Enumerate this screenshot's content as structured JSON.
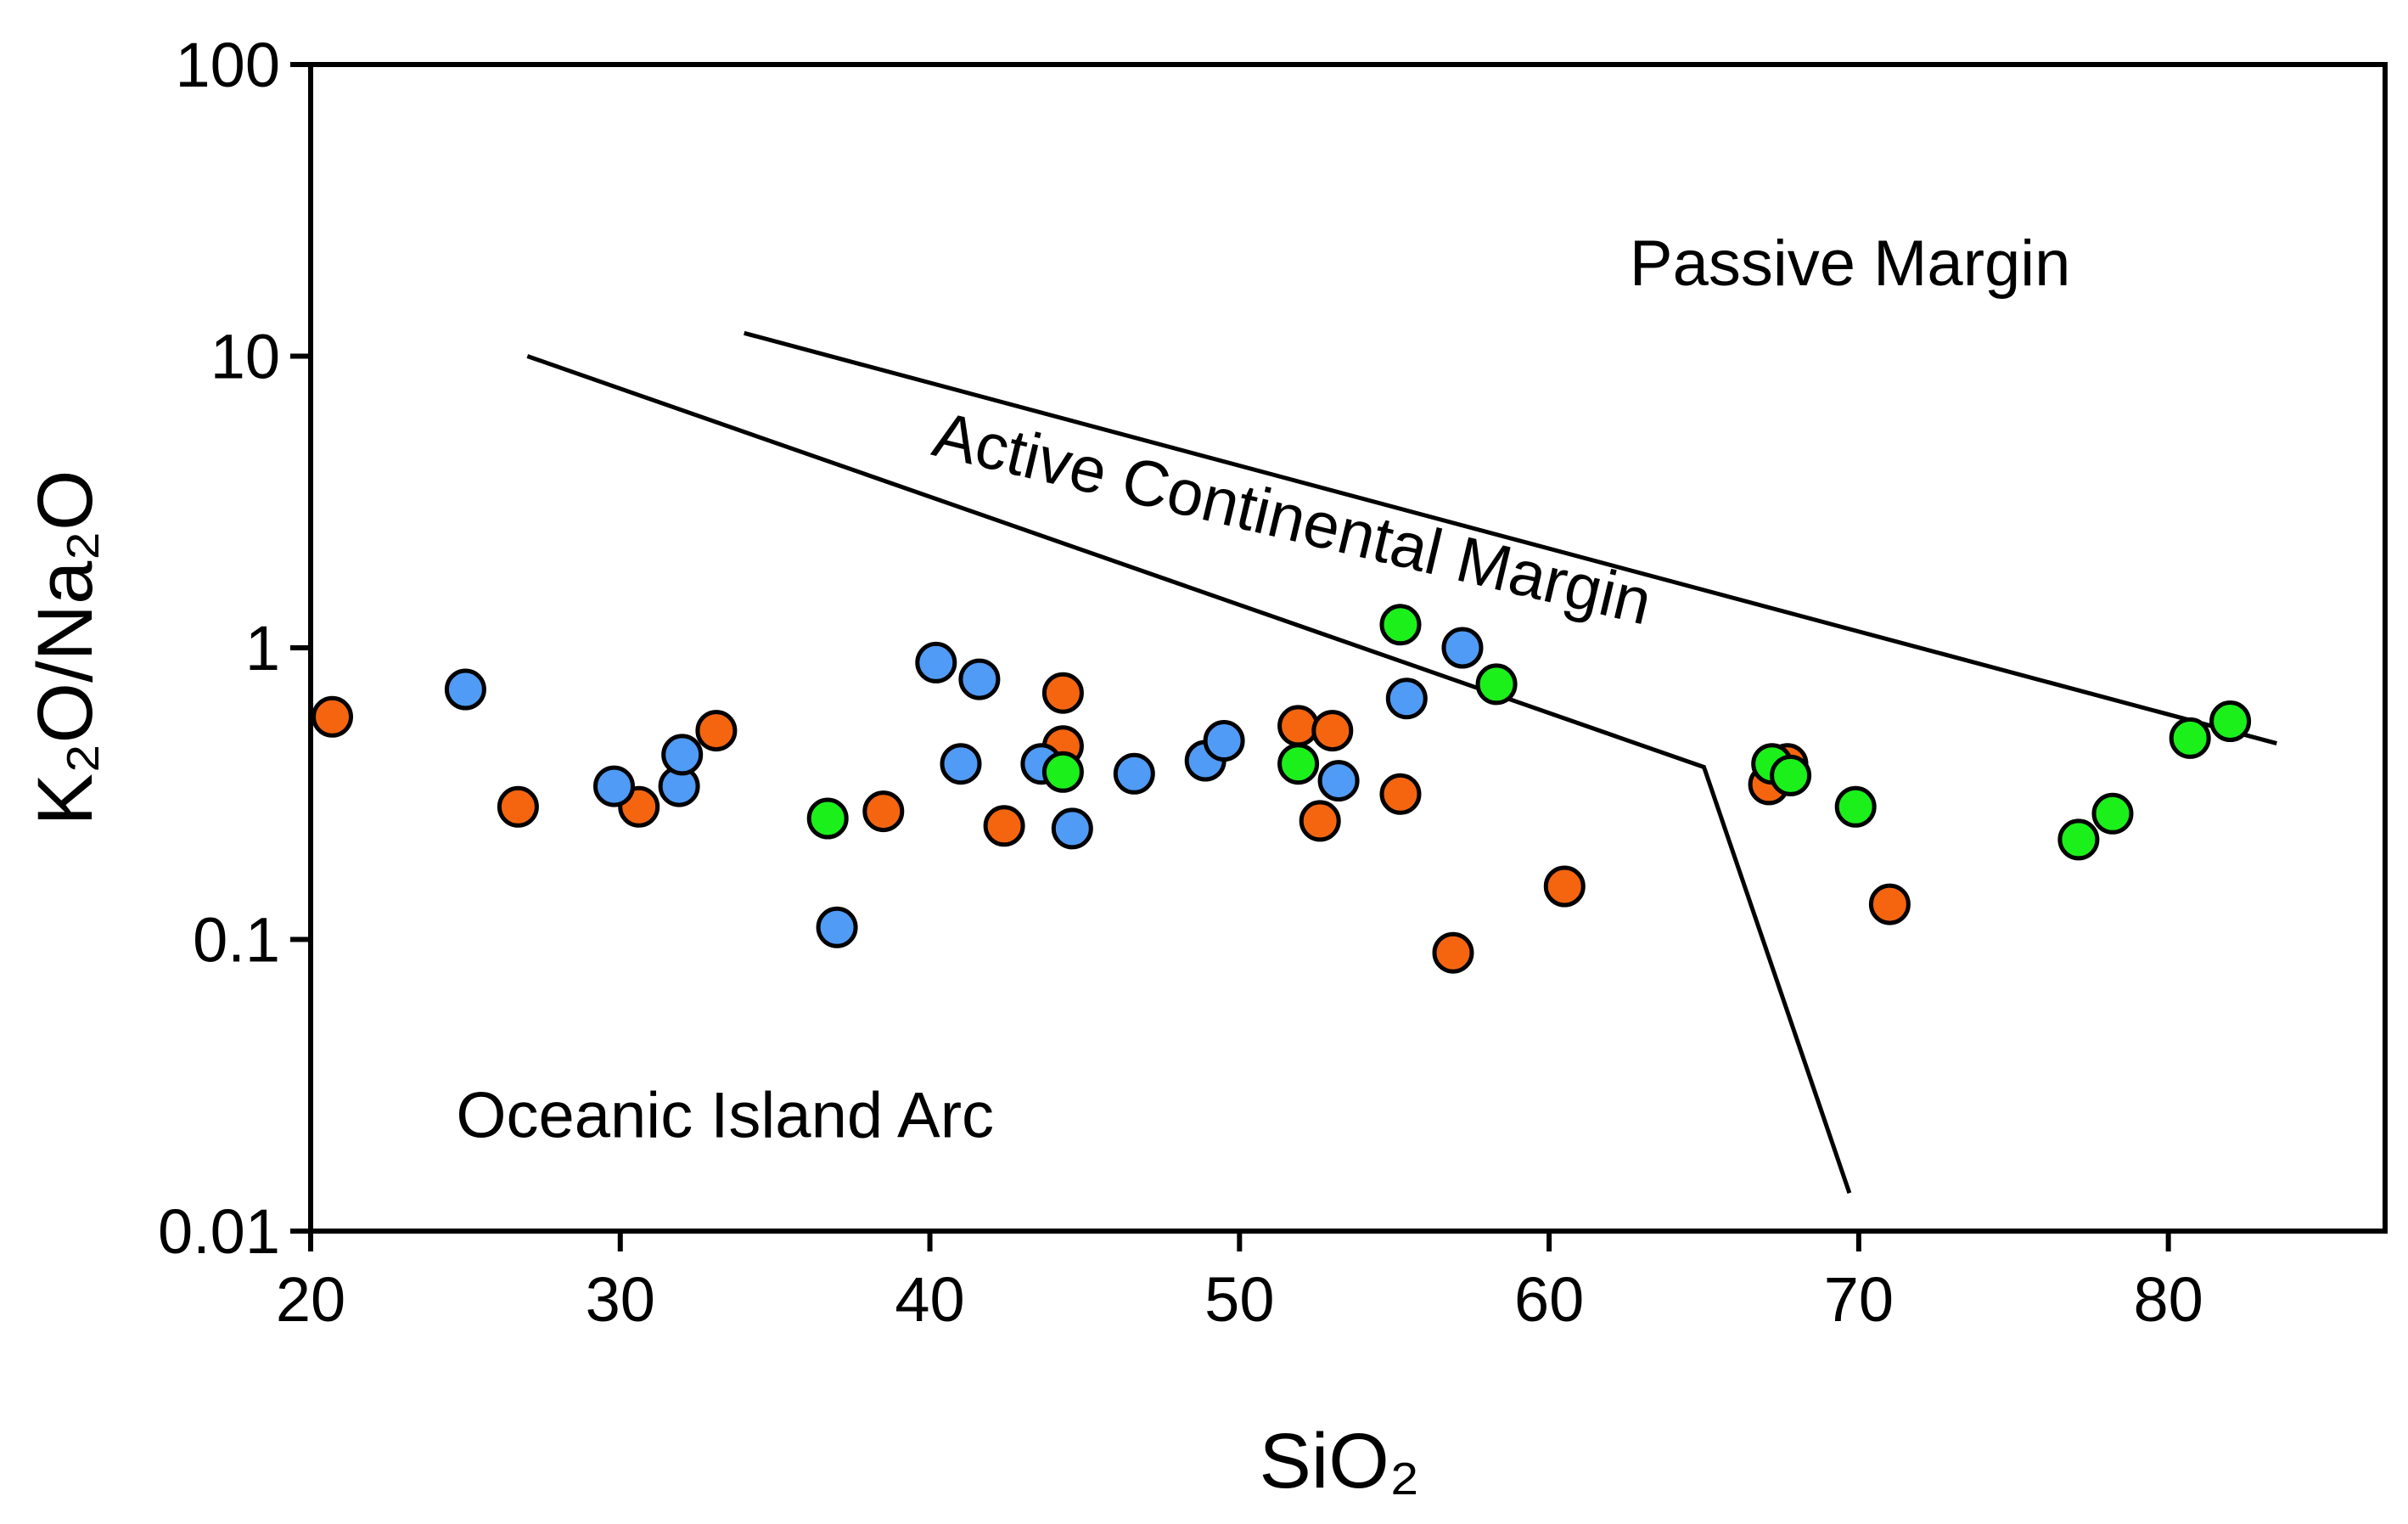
{
  "chart_data": {
    "type": "scatter",
    "title": "",
    "xlabel": "SiO₂",
    "ylabel": "K₂O/Na₂O",
    "xlim": [
      20,
      87
    ],
    "ylim": [
      0.01,
      100
    ],
    "yscale": "log",
    "grid": false,
    "x_ticks": [
      20,
      30,
      40,
      50,
      60,
      70,
      80
    ],
    "x_tick_labels": [
      "20",
      "30",
      "40",
      "50",
      "60",
      "70",
      "80"
    ],
    "y_ticks": [
      0.01,
      0.1,
      1,
      10,
      100
    ],
    "y_tick_labels": [
      "0.01",
      "0.1",
      "1",
      "10",
      "100"
    ],
    "colors": {
      "orange": "#f5650f",
      "blue": "#4f9bf5",
      "green": "#1bf01b",
      "axis": "#000000"
    },
    "region_labels": [
      {
        "name": "passive-margin",
        "text": "Passive Margin",
        "x": 62.6,
        "y": 17.5,
        "rotation": 0
      },
      {
        "name": "active-continental-margin",
        "text": "Active Continental Margin",
        "x": 40,
        "y": 4.6,
        "rotation": 13.4
      },
      {
        "name": "oceanic-island-arc",
        "text": "Oceanic Island Arc",
        "x": 24.7,
        "y": 0.021,
        "rotation": 0
      }
    ],
    "boundaries": [
      {
        "name": "lower-boundary",
        "points": [
          [
            27,
            10
          ],
          [
            65,
            0.39
          ],
          [
            69.7,
            0.0135
          ]
        ]
      },
      {
        "name": "upper-boundary",
        "points": [
          [
            34,
            12
          ],
          [
            83.5,
            0.47
          ]
        ]
      }
    ],
    "series": [
      {
        "name": "orange",
        "color": "#f5650f",
        "points": [
          [
            20.7,
            0.58
          ],
          [
            26.7,
            0.285
          ],
          [
            30.6,
            0.285
          ],
          [
            33.1,
            0.52
          ],
          [
            38.5,
            0.275
          ],
          [
            42.4,
            0.245
          ],
          [
            44.3,
            0.7
          ],
          [
            44.3,
            0.46
          ],
          [
            51.9,
            0.54
          ],
          [
            53.0,
            0.52
          ],
          [
            52.6,
            0.255
          ],
          [
            55.2,
            0.315
          ],
          [
            56.9,
            0.09
          ],
          [
            60.5,
            0.152
          ],
          [
            67.1,
            0.34
          ],
          [
            67.7,
            0.4
          ],
          [
            71.0,
            0.132
          ]
        ]
      },
      {
        "name": "blue",
        "color": "#4f9bf5",
        "points": [
          [
            25.0,
            0.72
          ],
          [
            29.8,
            0.335
          ],
          [
            31.9,
            0.335
          ],
          [
            32.0,
            0.43
          ],
          [
            37.0,
            0.11
          ],
          [
            40.2,
            0.89
          ],
          [
            41.6,
            0.78
          ],
          [
            41.0,
            0.4
          ],
          [
            43.6,
            0.4
          ],
          [
            44.6,
            0.24
          ],
          [
            46.6,
            0.37
          ],
          [
            48.9,
            0.41
          ],
          [
            49.5,
            0.48
          ],
          [
            53.2,
            0.35
          ],
          [
            55.4,
            0.67
          ],
          [
            57.2,
            1.0
          ]
        ]
      },
      {
        "name": "green",
        "color": "#1bf01b",
        "points": [
          [
            36.7,
            0.26
          ],
          [
            44.3,
            0.375
          ],
          [
            51.9,
            0.4
          ],
          [
            55.2,
            1.2
          ],
          [
            58.3,
            0.75
          ],
          [
            67.2,
            0.4
          ],
          [
            67.8,
            0.365
          ],
          [
            69.9,
            0.285
          ],
          [
            77.1,
            0.22
          ],
          [
            78.2,
            0.27
          ],
          [
            80.7,
            0.49
          ],
          [
            82.0,
            0.56
          ]
        ]
      }
    ]
  }
}
